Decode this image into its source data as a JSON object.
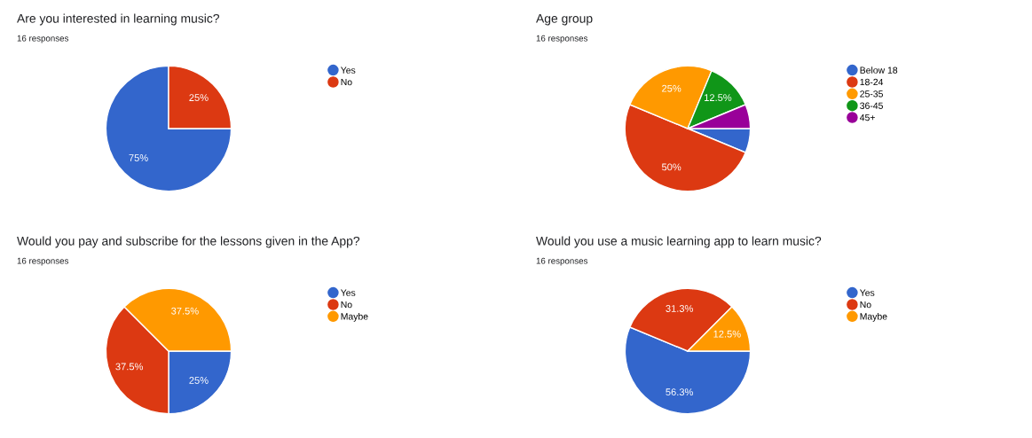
{
  "chart_data": [
    {
      "type": "pie",
      "title": "Are you interested in learning music?",
      "subtitle": "16 responses",
      "categories": [
        "Yes",
        "No"
      ],
      "values": [
        75,
        25
      ],
      "colors": [
        "#3366cc",
        "#dc3912"
      ],
      "value_labels": [
        "75%",
        "25%"
      ],
      "legend": "right"
    },
    {
      "type": "pie",
      "title": "Age group",
      "subtitle": "16 responses",
      "categories": [
        "Below 18",
        "18-24",
        "25-35",
        "36-45",
        "45+"
      ],
      "values": [
        6.25,
        50,
        25,
        12.5,
        6.25
      ],
      "colors": [
        "#3366cc",
        "#dc3912",
        "#ff9900",
        "#109618",
        "#990099"
      ],
      "value_labels": [
        null,
        "50%",
        "25%",
        "12.5%",
        null
      ],
      "legend": "right"
    },
    {
      "type": "pie",
      "title": "Would you pay and subscribe for the lessons given in the App?",
      "subtitle": "16 responses",
      "categories": [
        "Yes",
        "No",
        "Maybe"
      ],
      "values": [
        25,
        37.5,
        37.5
      ],
      "colors": [
        "#3366cc",
        "#dc3912",
        "#ff9900"
      ],
      "value_labels": [
        "25%",
        "37.5%",
        "37.5%"
      ],
      "legend": "right"
    },
    {
      "type": "pie",
      "title": "Would you use a music learning app to learn music?",
      "subtitle": "16 responses",
      "categories": [
        "Yes",
        "No",
        "Maybe"
      ],
      "values": [
        56.25,
        31.25,
        12.5
      ],
      "colors": [
        "#3366cc",
        "#dc3912",
        "#ff9900"
      ],
      "value_labels": [
        "56.3%",
        "31.3%",
        "12.5%"
      ],
      "legend": "right"
    }
  ]
}
